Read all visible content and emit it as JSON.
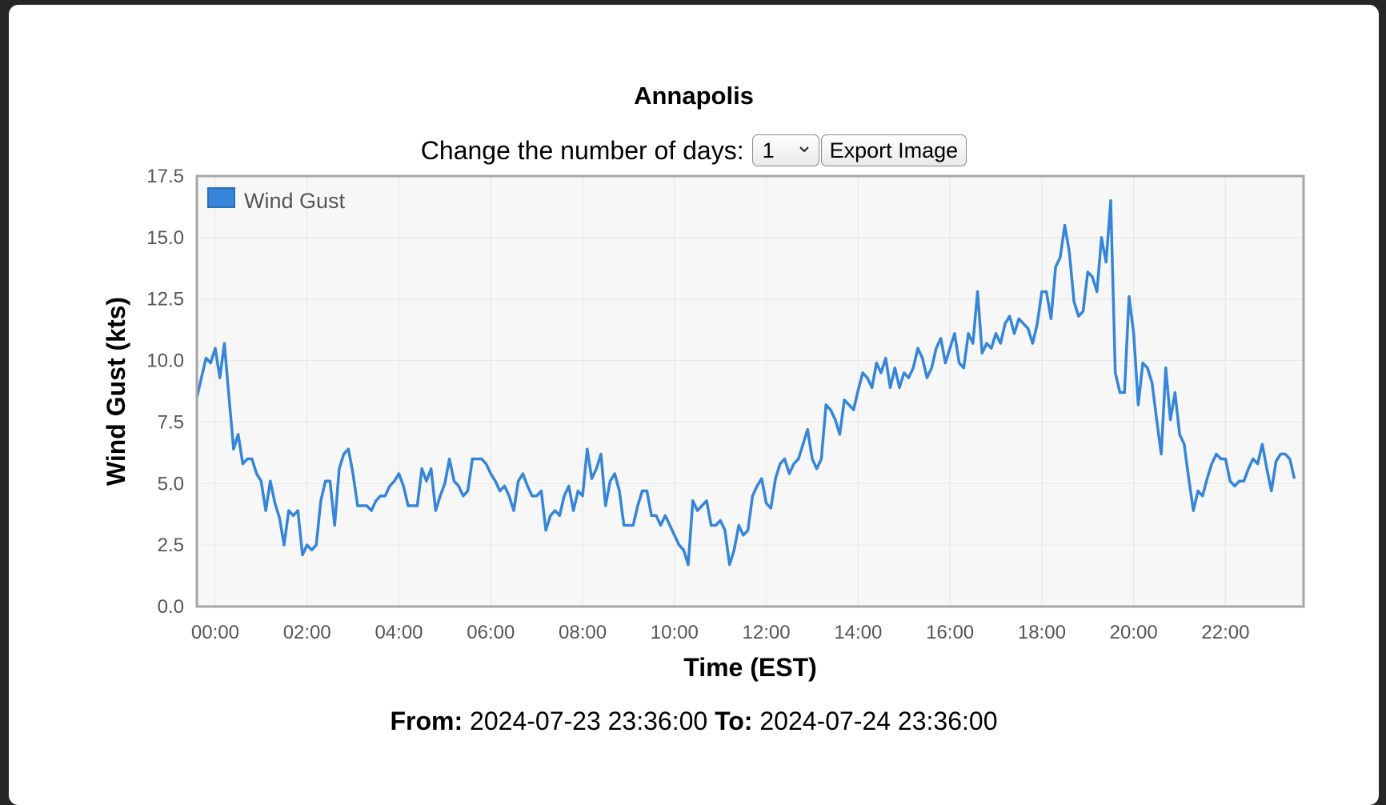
{
  "header": {
    "title": "Annapolis",
    "days_label": "Change the number of days:",
    "days_value": "1",
    "export_label": "Export Image"
  },
  "footer": {
    "from_label": "From:",
    "from_value": "2024-07-23 23:36:00",
    "to_label": "To:",
    "to_value": "2024-07-24 23:36:00"
  },
  "icons": {
    "select_arrow": "chevron-down-icon"
  },
  "colors": {
    "series": "#3585d9",
    "plot_bg": "#f7f7f7",
    "grid": "#e6e6e6",
    "frame": "#a6a6a6"
  },
  "chart_data": {
    "type": "line",
    "xlabel": "Time (EST)",
    "ylabel": "Wind Gust (kts)",
    "ylim": [
      0,
      17.5
    ],
    "yticks": [
      "0.0",
      "2.5",
      "5.0",
      "7.5",
      "10.0",
      "12.5",
      "15.0",
      "17.5"
    ],
    "xlim_hours": [
      -0.4,
      23.7
    ],
    "xticks": [
      "00:00",
      "02:00",
      "04:00",
      "06:00",
      "08:00",
      "10:00",
      "12:00",
      "14:00",
      "16:00",
      "18:00",
      "20:00",
      "22:00"
    ],
    "grid": true,
    "legend": "top-left",
    "series": [
      {
        "name": "Wind Gust",
        "color": "#3585d9",
        "x_start": "2024-07-23 23:36",
        "interval_minutes": 6,
        "values": [
          8.5,
          9.3,
          10.1,
          9.9,
          10.5,
          9.3,
          10.7,
          8.5,
          6.4,
          7.0,
          5.8,
          6.0,
          6.0,
          5.4,
          5.1,
          3.9,
          5.1,
          4.2,
          3.6,
          2.5,
          3.9,
          3.7,
          3.9,
          2.1,
          2.5,
          2.3,
          2.5,
          4.3,
          5.1,
          5.1,
          3.3,
          5.6,
          6.2,
          6.4,
          5.4,
          4.1,
          4.1,
          4.1,
          3.9,
          4.3,
          4.5,
          4.5,
          4.9,
          5.1,
          5.4,
          4.9,
          4.1,
          4.1,
          4.1,
          5.6,
          5.1,
          5.6,
          3.9,
          4.5,
          5.0,
          6.0,
          5.1,
          4.9,
          4.5,
          4.7,
          6.0,
          6.0,
          6.0,
          5.8,
          5.4,
          5.1,
          4.7,
          4.9,
          4.5,
          3.9,
          5.1,
          5.4,
          4.9,
          4.5,
          4.5,
          4.7,
          3.1,
          3.7,
          3.9,
          3.7,
          4.5,
          4.9,
          3.9,
          4.7,
          4.5,
          6.4,
          5.2,
          5.6,
          6.2,
          4.1,
          5.1,
          5.4,
          4.7,
          3.3,
          3.3,
          3.3,
          4.1,
          4.7,
          4.7,
          3.7,
          3.7,
          3.3,
          3.7,
          3.3,
          2.9,
          2.5,
          2.3,
          1.7,
          4.3,
          3.9,
          4.1,
          4.3,
          3.3,
          3.3,
          3.5,
          3.1,
          1.7,
          2.3,
          3.3,
          2.9,
          3.1,
          4.5,
          4.9,
          5.2,
          4.2,
          4.0,
          5.2,
          5.8,
          6.0,
          5.4,
          5.8,
          6.0,
          6.6,
          7.2,
          6.0,
          5.6,
          6.0,
          8.2,
          8.0,
          7.6,
          7.0,
          8.4,
          8.2,
          8.0,
          8.8,
          9.5,
          9.3,
          8.9,
          9.9,
          9.5,
          10.1,
          8.9,
          9.7,
          8.9,
          9.5,
          9.3,
          9.7,
          10.5,
          10.1,
          9.3,
          9.7,
          10.5,
          10.9,
          9.9,
          10.5,
          11.1,
          9.9,
          9.7,
          11.1,
          10.7,
          12.8,
          10.3,
          10.7,
          10.5,
          11.1,
          10.7,
          11.5,
          11.8,
          11.1,
          11.7,
          11.5,
          11.3,
          10.7,
          11.5,
          12.8,
          12.8,
          11.7,
          13.8,
          14.2,
          15.5,
          14.4,
          12.4,
          11.8,
          12.0,
          13.6,
          13.4,
          12.8,
          15.0,
          14.0,
          16.5,
          9.5,
          8.7,
          8.7,
          12.6,
          11.1,
          8.2,
          9.9,
          9.7,
          9.1,
          7.6,
          6.2,
          9.7,
          7.6,
          8.7,
          7.0,
          6.6,
          5.2,
          3.9,
          4.7,
          4.5,
          5.2,
          5.8,
          6.2,
          6.0,
          6.0,
          5.1,
          4.9,
          5.1,
          5.1,
          5.6,
          6.0,
          5.8,
          6.6,
          5.6,
          4.7,
          5.9,
          6.2,
          6.2,
          6.0,
          5.2
        ]
      }
    ]
  }
}
